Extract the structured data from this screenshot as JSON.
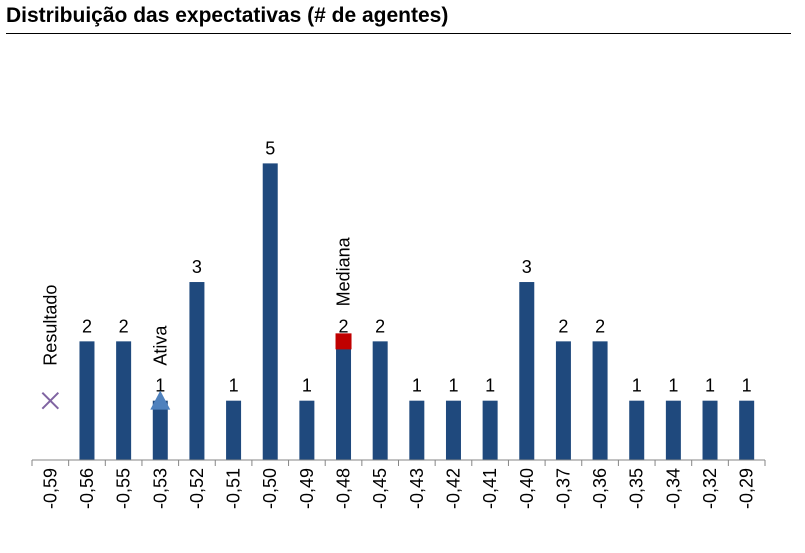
{
  "title": "Distribuição das expectativas (# de agentes)",
  "chart_data": {
    "type": "bar",
    "categories": [
      "-0,59",
      "-0,56",
      "-0,55",
      "-0,53",
      "-0,52",
      "-0,51",
      "-0,50",
      "-0,49",
      "-0,48",
      "-0,45",
      "-0,43",
      "-0,42",
      "-0,41",
      "-0,40",
      "-0,37",
      "-0,36",
      "-0,35",
      "-0,34",
      "-0,32",
      "-0,29"
    ],
    "values": [
      0,
      2,
      2,
      1,
      3,
      1,
      5,
      1,
      2,
      2,
      1,
      1,
      1,
      3,
      2,
      2,
      1,
      1,
      1,
      1
    ],
    "value_labels_shown": [
      false,
      true,
      true,
      true,
      true,
      true,
      true,
      true,
      true,
      true,
      true,
      true,
      true,
      true,
      true,
      true,
      true,
      true,
      true,
      true
    ],
    "ylim": [
      0,
      5.9
    ],
    "grid": false,
    "bar_color": "#1F497D",
    "markers": [
      {
        "label": "Resultado",
        "category": "-0,59",
        "value": 1,
        "shape": "x",
        "color": "#8064A2"
      },
      {
        "label": "Ativa",
        "category": "-0,53",
        "value": 1,
        "shape": "triangle",
        "color": "#4F81BD"
      },
      {
        "label": "Mediana",
        "category": "-0,48",
        "value": 2,
        "shape": "square",
        "color": "#C00000"
      }
    ]
  }
}
